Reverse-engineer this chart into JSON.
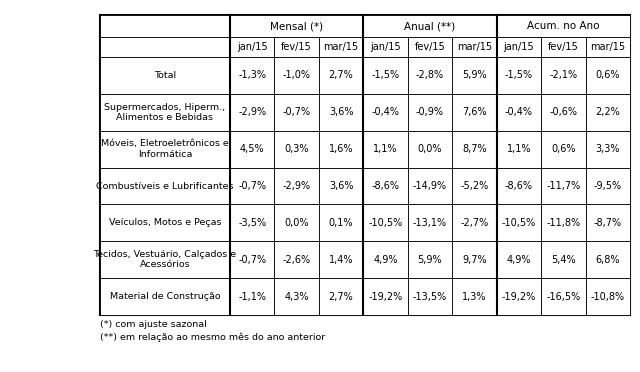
{
  "headers_top": [
    "",
    "Mensal (*)",
    "",
    "",
    "Anual (**)",
    "",
    "",
    "Acum. no Ano",
    ""
  ],
  "headers_sub": [
    "jan/15",
    "fev/15",
    "mar/15",
    "jan/15",
    "fev/15",
    "mar/15",
    "jan/15",
    "fev/15",
    "mar/15"
  ],
  "row_labels": [
    "Total",
    "Supermercados, Hiperm.,\nAlimentos e Bebidas",
    "Móveis, Eletroeletrônicos e\nInformática",
    "Combustíveis e Lubrificantes",
    "Veículos, Motos e Peças",
    "Tecidos, Vestuário, Calçados e\nAcessórios",
    "Material de Construção"
  ],
  "data": [
    [
      "-1,3%",
      "-1,0%",
      "2,7%",
      "-1,5%",
      "-2,8%",
      "5,9%",
      "-1,5%",
      "-2,1%",
      "0,6%"
    ],
    [
      "-2,9%",
      "-0,7%",
      "3,6%",
      "-0,4%",
      "-0,9%",
      "7,6%",
      "-0,4%",
      "-0,6%",
      "2,2%"
    ],
    [
      "4,5%",
      "0,3%",
      "1,6%",
      "1,1%",
      "0,0%",
      "8,7%",
      "1,1%",
      "0,6%",
      "3,3%"
    ],
    [
      "-0,7%",
      "-2,9%",
      "3,6%",
      "-8,6%",
      "-14,9%",
      "-5,2%",
      "-8,6%",
      "-11,7%",
      "-9,5%"
    ],
    [
      "-3,5%",
      "0,0%",
      "0,1%",
      "-10,5%",
      "-13,1%",
      "-2,7%",
      "-10,5%",
      "-11,8%",
      "-8,7%"
    ],
    [
      "-0,7%",
      "-2,6%",
      "1,4%",
      "4,9%",
      "5,9%",
      "9,7%",
      "4,9%",
      "5,4%",
      "6,8%"
    ],
    [
      "-1,1%",
      "4,3%",
      "2,7%",
      "-19,2%",
      "-13,5%",
      "1,3%",
      "-19,2%",
      "-16,5%",
      "-10,8%"
    ]
  ],
  "footnotes": [
    "(*) com ajuste sazonal",
    "(**) em relação ao mesmo mês do ano anterior"
  ],
  "group_labels": [
    "Mensal (*)",
    "Anual (**)",
    "Acum. no Ano"
  ],
  "group_cols": [
    3,
    3,
    3
  ],
  "bg_color": "#ffffff",
  "font_size": 7.0,
  "header_font_size": 7.5,
  "lw_thin": 0.6,
  "lw_thick": 1.5
}
